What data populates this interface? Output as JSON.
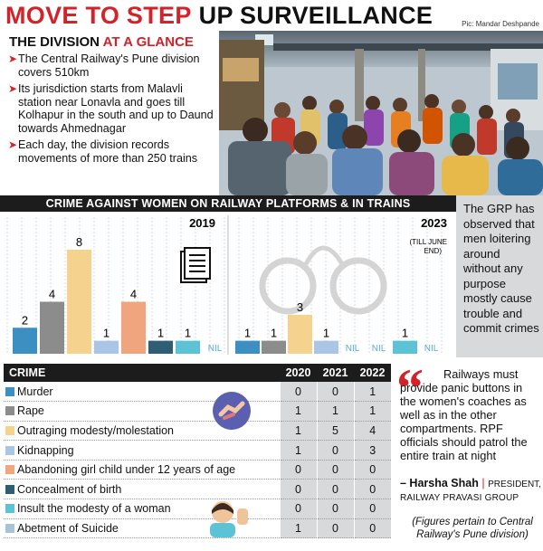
{
  "headline": {
    "part1": "MOVE TO STEP",
    "part2": "UP SURVEILLANCE"
  },
  "credit": "Pic: Mandar Deshpande",
  "glance": {
    "title_part1": "THE DIVISION",
    "title_part2": "AT A GLANCE",
    "items": [
      "The Central Railway's Pune division covers 510km",
      "Its jurisdiction starts from Malavli station near Lonavla and goes till Kolhapur in the south and up to Daund towards Ahmednagar",
      "Each day, the division records movements of more than 250 trains"
    ]
  },
  "chart_header": "CRIME AGAINST WOMEN ON RAILWAY PLATFORMS & IN TRAINS",
  "grp_note": "The GRP has observed that men loitering around without any purpose mostly cause trouble and commit crimes",
  "chart_data": {
    "type": "bar",
    "title": "CRIME AGAINST WOMEN ON RAILWAY PLATFORMS & IN TRAINS",
    "categories": [
      "Murder",
      "Rape",
      "Outraging modesty/molestation",
      "Kidnapping",
      "Abandoning girl child under 12 years of age",
      "Concealment of birth",
      "Insult the modesty of a woman",
      "Abetment of Suicide"
    ],
    "colors": [
      "#3b8fc2",
      "#8c8c8c",
      "#f6d28f",
      "#a9c6e6",
      "#f1a57f",
      "#2e5d74",
      "#5cc2d6",
      "#a8c3d8"
    ],
    "panels": [
      {
        "name": "2019",
        "note": "",
        "values": [
          2,
          4,
          8,
          1,
          4,
          1,
          1,
          0
        ],
        "labels": [
          "2",
          "4",
          "8",
          "1",
          "4",
          "1",
          "1",
          "NIL"
        ]
      },
      {
        "name": "2023",
        "note": "(TILL JUNE END)",
        "values": [
          1,
          1,
          3,
          1,
          0,
          0,
          1,
          0
        ],
        "labels": [
          "1",
          "1",
          "3",
          "1",
          "NIL",
          "NIL",
          "1",
          "NIL"
        ]
      }
    ],
    "ylim": [
      0,
      8
    ],
    "grid": true
  },
  "table": {
    "header": {
      "crime": "CRIME",
      "years": [
        "2020",
        "2021",
        "2022"
      ]
    },
    "rows": [
      {
        "name": "Murder",
        "color": "#3b8fc2",
        "values": [
          "0",
          "0",
          "1"
        ]
      },
      {
        "name": "Rape",
        "color": "#8c8c8c",
        "values": [
          "1",
          "1",
          "1"
        ]
      },
      {
        "name": "Outraging modesty/molestation",
        "color": "#f6d28f",
        "values": [
          "1",
          "5",
          "4"
        ]
      },
      {
        "name": "Kidnapping",
        "color": "#a9c6e6",
        "values": [
          "1",
          "0",
          "3"
        ]
      },
      {
        "name": "Abandoning girl child under 12 years of age",
        "color": "#f1a57f",
        "values": [
          "0",
          "0",
          "0"
        ]
      },
      {
        "name": "Concealment of birth",
        "color": "#2e5d74",
        "values": [
          "0",
          "0",
          "0"
        ]
      },
      {
        "name": "Insult the modesty of a woman",
        "color": "#5cc2d6",
        "values": [
          "0",
          "0",
          "0"
        ]
      },
      {
        "name": "Abetment of Suicide",
        "color": "#a8c3d8",
        "values": [
          "1",
          "0",
          "0"
        ]
      }
    ]
  },
  "quote": {
    "text": "Railways must provide panic buttons in the women's coaches as well as in the other compartments. RPF officials should patrol the entire train at night",
    "author": "– Harsha Shah",
    "role": "PRESIDENT,",
    "org": "RAILWAY PRAVASI GROUP"
  },
  "footnote": "(Figures pertain to Central Railway's Pune division)"
}
